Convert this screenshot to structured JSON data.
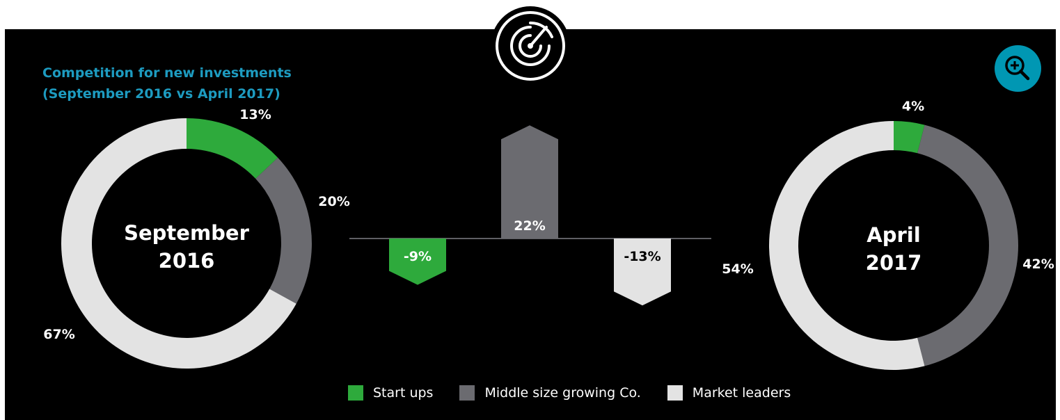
{
  "title": {
    "line1": "Competition for new investments",
    "line2": "(September 2016 vs April 2017)"
  },
  "icons": {
    "center": "radar-icon",
    "zoom": "zoom-in-icon"
  },
  "colors": {
    "background": "#000000",
    "title": "#1d9bc0",
    "zoom_button": "#0097b3",
    "start_ups": "#2eaa3c",
    "middle_size": "#6b6b70",
    "market_leaders": "#e3e3e3"
  },
  "chart_data": [
    {
      "type": "pie",
      "variant": "donut",
      "center_label": [
        "September",
        "2016"
      ],
      "categories": [
        "Start ups",
        "Middle size growing Co.",
        "Market leaders"
      ],
      "values": [
        13,
        20,
        67
      ],
      "value_labels": [
        "13%",
        "20%",
        "67%"
      ],
      "unit": "%"
    },
    {
      "type": "bar",
      "variant": "arrows",
      "categories": [
        "Start ups",
        "Middle size growing Co.",
        "Market leaders"
      ],
      "values": [
        -9,
        22,
        -13
      ],
      "value_labels": [
        "-9%",
        "22%",
        "-13%"
      ],
      "unit": "%"
    },
    {
      "type": "pie",
      "variant": "donut",
      "center_label": [
        "April",
        "2017"
      ],
      "categories": [
        "Start ups",
        "Middle size growing Co.",
        "Market leaders"
      ],
      "values": [
        4,
        42,
        54
      ],
      "value_labels": [
        "4%",
        "42%",
        "54%"
      ],
      "unit": "%"
    }
  ],
  "legend": [
    {
      "label": "Start ups",
      "color": "#2eaa3c"
    },
    {
      "label": "Middle size growing Co.",
      "color": "#6b6b70"
    },
    {
      "label": "Market leaders",
      "color": "#e3e3e3"
    }
  ]
}
